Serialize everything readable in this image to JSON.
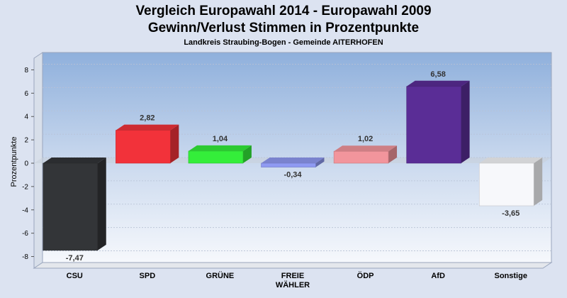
{
  "chart_data": {
    "type": "bar",
    "title_line1": "Vergleich Europawahl 2014 - Europawahl 2009",
    "title_line2": "Gewinn/Verlust Stimmen in Prozentpunkte",
    "subtitle": "Landkreis Straubing-Bogen - Gemeinde AITERHOFEN",
    "xlabel": "",
    "ylabel": "Prozentpunkte",
    "ylim": [
      -9,
      9
    ],
    "yticks": [
      -8,
      -6,
      -4,
      -2,
      0,
      2,
      4,
      6,
      8
    ],
    "grid": true,
    "legend": "none",
    "categories": [
      {
        "label_lines": [
          "CSU"
        ]
      },
      {
        "label_lines": [
          "SPD"
        ]
      },
      {
        "label_lines": [
          "GRÜNE"
        ]
      },
      {
        "label_lines": [
          "FREIE",
          "WÄHLER"
        ]
      },
      {
        "label_lines": [
          "ÖDP"
        ]
      },
      {
        "label_lines": [
          "AfD"
        ]
      },
      {
        "label_lines": [
          "Sonstige"
        ]
      }
    ],
    "values": [
      -7.47,
      2.82,
      1.04,
      -0.34,
      1.02,
      6.58,
      -3.65
    ],
    "value_labels": [
      "-7,47",
      "2,82",
      "1,04",
      "-0,34",
      "1,02",
      "6,58",
      "-3,65"
    ],
    "colors": [
      "#333538",
      "#f2323a",
      "#34ee3a",
      "#8f9af2",
      "#f2959c",
      "#5a2d96",
      "#f7f8fb"
    ]
  }
}
